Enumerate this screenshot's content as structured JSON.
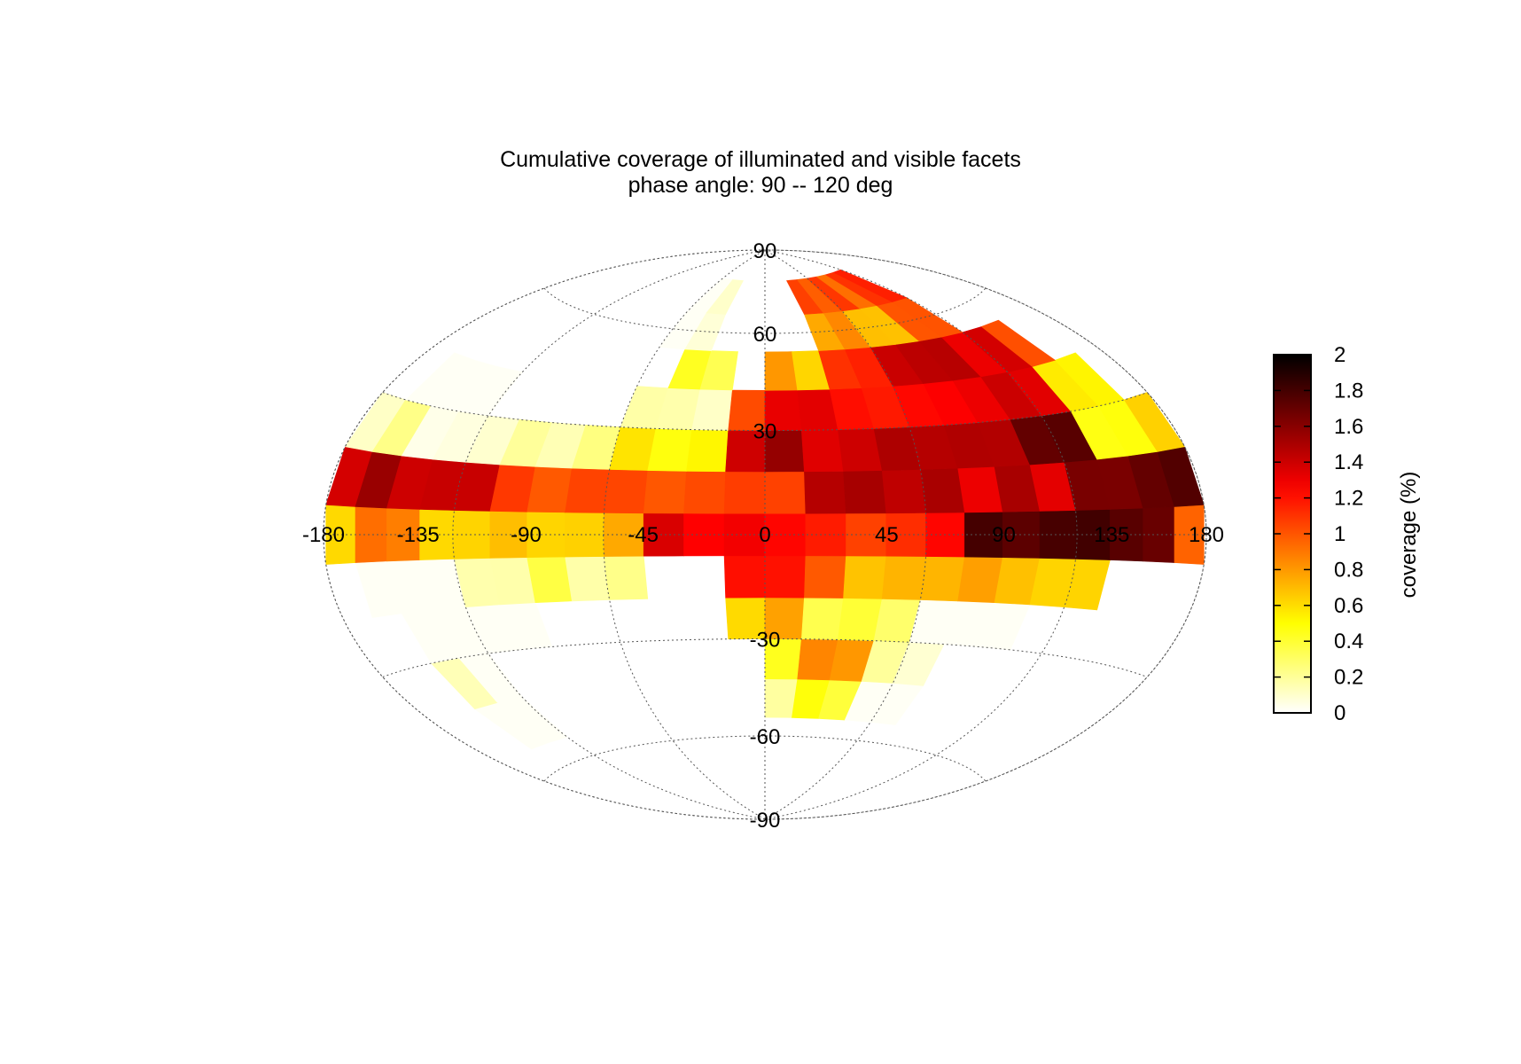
{
  "chart_data": {
    "type": "heatmap",
    "projection": "hammer-aitoff",
    "title": "Cumulative coverage of illuminated and visible facets",
    "subtitle": "phase angle:  90 -- 120 deg",
    "colorbar": {
      "label": "coverage (%)",
      "range": [
        0,
        2
      ],
      "ticks": [
        0,
        0.2,
        0.4,
        0.6,
        0.8,
        1,
        1.2,
        1.4,
        1.6,
        1.8,
        2
      ],
      "tick_labels": [
        "0",
        "0.2",
        "0.4",
        "0.6",
        "0.8",
        "1",
        "1.2",
        "1.4",
        "1.6",
        "1.8",
        "2"
      ],
      "colormap": "hot (reversed)",
      "placement": "right"
    },
    "longitude_ticks": [
      -180,
      -135,
      -90,
      -45,
      0,
      45,
      90,
      135,
      180
    ],
    "longitude_tick_labels": [
      "-180",
      "-135",
      "-90",
      "-45",
      "0",
      "45",
      "90",
      "135",
      "180"
    ],
    "latitude_ticks": [
      -90,
      -60,
      -30,
      30,
      60,
      90
    ],
    "latitude_tick_labels": [
      "-90",
      "-60",
      "-30",
      "30",
      "60",
      "90"
    ],
    "meridians": [
      -180,
      -120,
      -60,
      0,
      60,
      120,
      180
    ],
    "parallels": [
      -60,
      -30,
      30,
      60
    ],
    "grid": true,
    "cell_size_deg": {
      "lon": 15,
      "lat": 12
    },
    "region_values": [
      {
        "region": "lat 10 to 20, lon -180 to -140",
        "value": 1.75
      },
      {
        "region": "lat 10 to 20, lon -140 to -110",
        "value": 1.65
      },
      {
        "region": "lat 10 to 20, lon -110 to -50",
        "value": 1.3
      },
      {
        "region": "lat 10 to 20, lon -50 to -20",
        "value": 1.2
      },
      {
        "region": "lat 10 to 20, lon 20 to 150",
        "value": 1.65
      },
      {
        "region": "lat 10 to 20, lon 150 to 180",
        "value": 1.7
      },
      {
        "region": "lat 0 to 10, lon -180 to -50",
        "value": 0.75
      },
      {
        "region": "lat 0 to 10, lon -50 to 0",
        "value": 1.3
      },
      {
        "region": "lat 0 to 10, lon 80 to 165",
        "value": 1.95
      },
      {
        "region": "lat 15 to 45, lon 0 to 60",
        "value": 1.55
      },
      {
        "region": "lat 20 to 55, lon 60 to 130",
        "value": 1.55
      },
      {
        "region": "lat 50 to 65, lon 50 to 110",
        "value": 1.0
      },
      {
        "region": "lat 40 to 75, lon -45 to -20",
        "value": 0.3
      },
      {
        "region": "lat -35 to 0, lon -10 to 50",
        "value": 1.2
      },
      {
        "region": "lat -20 to 0, lon 100 to 135",
        "value": 1.8
      },
      {
        "region": "lat -50 to -30, lon 10 to 50",
        "value": 0.8
      },
      {
        "region": "lat -45 to -10, lon -150 to -90",
        "value": 0.15
      }
    ]
  }
}
